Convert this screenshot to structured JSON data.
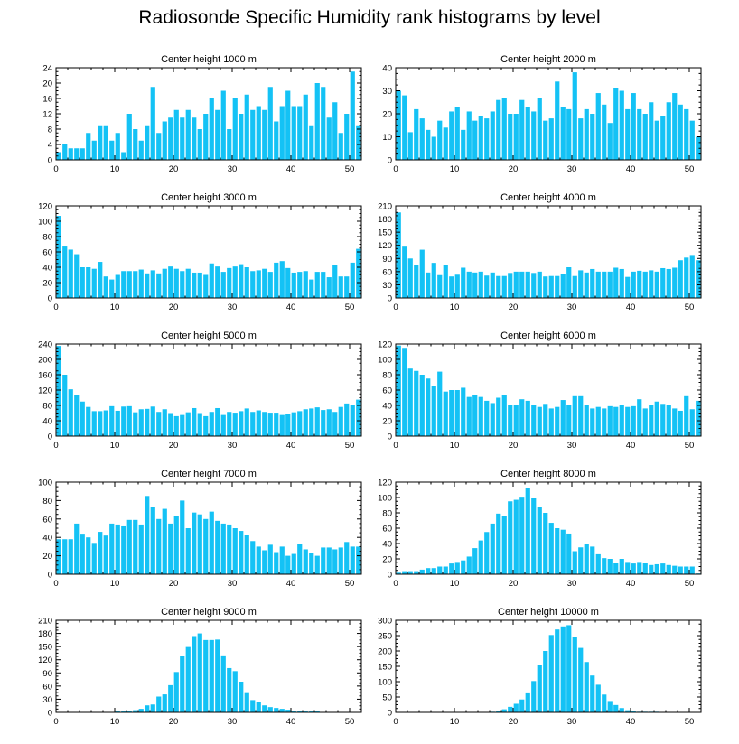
{
  "title": "Radiosonde Specific Humidity rank histograms by level",
  "colors": {
    "bar": "#14c2f5",
    "axis": "#000000"
  },
  "chart_data": [
    {
      "type": "bar",
      "title": "Center height 1000 m",
      "xlim": [
        0,
        52
      ],
      "ylim": [
        0,
        24
      ],
      "xticks": [
        0,
        10,
        20,
        30,
        40,
        50
      ],
      "yticks": [
        0,
        4,
        8,
        12,
        16,
        20,
        24
      ],
      "values": [
        2,
        4,
        3,
        3,
        3,
        7,
        5,
        9,
        9,
        5,
        7,
        2,
        12,
        8,
        5,
        9,
        19,
        7,
        10,
        11,
        13,
        11,
        13,
        11,
        8,
        12,
        16,
        13,
        18,
        8,
        16,
        12,
        17,
        13,
        14,
        13,
        19,
        10,
        14,
        18,
        14,
        14,
        17,
        9,
        20,
        19,
        11,
        15,
        7,
        12,
        23,
        9
      ]
    },
    {
      "type": "bar",
      "title": "Center height 2000 m",
      "xlim": [
        0,
        52
      ],
      "ylim": [
        0,
        40
      ],
      "xticks": [
        0,
        10,
        20,
        30,
        40,
        50
      ],
      "yticks": [
        0,
        10,
        20,
        30,
        40
      ],
      "values": [
        30,
        28,
        12,
        22,
        18,
        13,
        10,
        17,
        14,
        21,
        23,
        13,
        21,
        17,
        19,
        18,
        21,
        26,
        27,
        20,
        20,
        26,
        23,
        21,
        27,
        17,
        18,
        34,
        23,
        22,
        38,
        18,
        22,
        20,
        29,
        24,
        16,
        31,
        30,
        22,
        29,
        22,
        20,
        25,
        17,
        19,
        25,
        29,
        24,
        22,
        17,
        10
      ]
    },
    {
      "type": "bar",
      "title": "Center height 3000 m",
      "xlim": [
        0,
        52
      ],
      "ylim": [
        0,
        120
      ],
      "xticks": [
        0,
        10,
        20,
        30,
        40,
        50
      ],
      "yticks": [
        0,
        20,
        40,
        60,
        80,
        100,
        120
      ],
      "values": [
        107,
        67,
        63,
        57,
        40,
        40,
        38,
        47,
        28,
        24,
        30,
        35,
        35,
        35,
        37,
        32,
        36,
        32,
        38,
        41,
        38,
        35,
        38,
        33,
        33,
        30,
        45,
        41,
        34,
        39,
        41,
        44,
        40,
        35,
        36,
        38,
        34,
        46,
        48,
        39,
        33,
        34,
        35,
        24,
        34,
        34,
        27,
        43,
        28,
        28,
        46,
        64
      ]
    },
    {
      "type": "bar",
      "title": "Center height 4000 m",
      "xlim": [
        0,
        52
      ],
      "ylim": [
        0,
        210
      ],
      "xticks": [
        0,
        10,
        20,
        30,
        40,
        50
      ],
      "yticks": [
        0,
        30,
        60,
        90,
        120,
        150,
        180,
        210
      ],
      "values": [
        195,
        117,
        90,
        75,
        110,
        58,
        80,
        52,
        76,
        49,
        53,
        69,
        60,
        58,
        60,
        51,
        58,
        50,
        50,
        57,
        60,
        60,
        60,
        57,
        60,
        49,
        50,
        50,
        55,
        70,
        50,
        63,
        58,
        66,
        60,
        60,
        60,
        69,
        66,
        48,
        60,
        62,
        60,
        63,
        60,
        68,
        66,
        69,
        86,
        92,
        98,
        86
      ]
    },
    {
      "type": "bar",
      "title": "Center height 5000 m",
      "xlim": [
        0,
        52
      ],
      "ylim": [
        0,
        240
      ],
      "xticks": [
        0,
        10,
        20,
        30,
        40,
        50
      ],
      "yticks": [
        0,
        40,
        80,
        120,
        160,
        200,
        240
      ],
      "values": [
        235,
        160,
        122,
        108,
        90,
        76,
        65,
        65,
        67,
        78,
        66,
        77,
        78,
        62,
        70,
        71,
        77,
        63,
        70,
        60,
        52,
        55,
        62,
        73,
        60,
        52,
        63,
        73,
        55,
        63,
        61,
        65,
        72,
        63,
        67,
        63,
        61,
        61,
        55,
        58,
        62,
        65,
        70,
        72,
        75,
        68,
        70,
        63,
        76,
        85,
        80,
        95
      ]
    },
    {
      "type": "bar",
      "title": "Center height 6000 m",
      "xlim": [
        0,
        52
      ],
      "ylim": [
        0,
        120
      ],
      "xticks": [
        0,
        10,
        20,
        30,
        40,
        50
      ],
      "yticks": [
        0,
        20,
        40,
        60,
        80,
        100,
        120
      ],
      "values": [
        118,
        115,
        88,
        85,
        80,
        75,
        65,
        84,
        58,
        60,
        60,
        63,
        51,
        53,
        51,
        46,
        43,
        50,
        53,
        41,
        41,
        48,
        46,
        40,
        38,
        42,
        36,
        38,
        47,
        40,
        52,
        52,
        40,
        36,
        38,
        36,
        39,
        38,
        40,
        38,
        39,
        48,
        36,
        40,
        45,
        42,
        40,
        36,
        33,
        52,
        35,
        46
      ]
    },
    {
      "type": "bar",
      "title": "Center height 7000 m",
      "xlim": [
        0,
        52
      ],
      "ylim": [
        0,
        100
      ],
      "xticks": [
        0,
        10,
        20,
        30,
        40,
        50
      ],
      "yticks": [
        0,
        20,
        40,
        60,
        80,
        100
      ],
      "values": [
        38,
        38,
        38,
        55,
        44,
        40,
        34,
        46,
        42,
        55,
        54,
        52,
        59,
        59,
        54,
        85,
        73,
        60,
        71,
        55,
        63,
        80,
        50,
        67,
        65,
        60,
        68,
        58,
        55,
        54,
        50,
        47,
        43,
        36,
        30,
        26,
        32,
        24,
        30,
        20,
        22,
        33,
        27,
        23,
        20,
        29,
        29,
        27,
        29,
        35,
        30,
        30
      ]
    },
    {
      "type": "bar",
      "title": "Center height 8000 m",
      "xlim": [
        0,
        52
      ],
      "ylim": [
        0,
        120
      ],
      "xticks": [
        0,
        10,
        20,
        30,
        40,
        50
      ],
      "yticks": [
        0,
        20,
        40,
        60,
        80,
        100,
        120
      ],
      "values": [
        2,
        4,
        4,
        4,
        6,
        8,
        8,
        10,
        10,
        14,
        16,
        18,
        23,
        34,
        44,
        55,
        66,
        79,
        76,
        95,
        97,
        101,
        112,
        99,
        88,
        80,
        67,
        60,
        58,
        53,
        30,
        35,
        40,
        36,
        26,
        21,
        20,
        15,
        20,
        16,
        14,
        16,
        15,
        12,
        13,
        14,
        12,
        11,
        10,
        10,
        10,
        1
      ]
    },
    {
      "type": "bar",
      "title": "Center height 9000 m",
      "xlim": [
        0,
        52
      ],
      "ylim": [
        0,
        210
      ],
      "xticks": [
        0,
        10,
        20,
        30,
        40,
        50
      ],
      "yticks": [
        0,
        30,
        60,
        90,
        120,
        150,
        180,
        210
      ],
      "values": [
        0,
        0,
        0,
        0,
        0,
        0,
        0,
        1,
        1,
        1,
        2,
        2,
        4,
        5,
        8,
        16,
        18,
        36,
        41,
        62,
        92,
        128,
        149,
        174,
        180,
        165,
        165,
        166,
        130,
        101,
        94,
        70,
        46,
        28,
        24,
        16,
        12,
        10,
        8,
        6,
        4,
        3,
        2,
        2,
        3,
        1,
        1,
        1,
        1,
        1,
        0,
        0
      ]
    },
    {
      "type": "bar",
      "title": "Center height 10000 m",
      "xlim": [
        0,
        52
      ],
      "ylim": [
        0,
        300
      ],
      "xticks": [
        0,
        10,
        20,
        30,
        40,
        50
      ],
      "yticks": [
        0,
        50,
        100,
        150,
        200,
        250,
        300
      ],
      "values": [
        0,
        0,
        0,
        0,
        0,
        0,
        0,
        0,
        0,
        0,
        0,
        0,
        0,
        0,
        0,
        1,
        2,
        5,
        10,
        18,
        28,
        42,
        65,
        102,
        155,
        200,
        252,
        270,
        280,
        284,
        245,
        210,
        164,
        120,
        90,
        58,
        37,
        24,
        14,
        7,
        4,
        2,
        2,
        2,
        2,
        1,
        1,
        1,
        1,
        1,
        1,
        0
      ]
    }
  ]
}
